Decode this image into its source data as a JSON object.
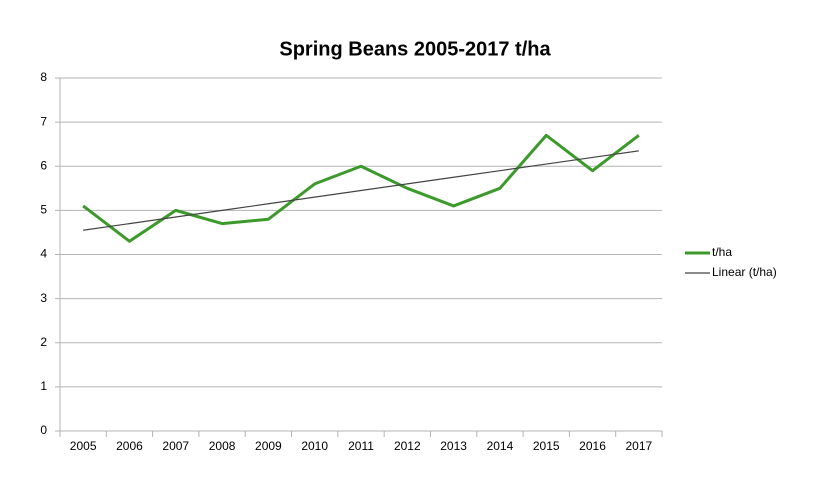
{
  "chart_data": {
    "type": "line",
    "title": "Spring Beans 2005-2017 t/ha",
    "categories": [
      "2005",
      "2006",
      "2007",
      "2008",
      "2009",
      "2010",
      "2011",
      "2012",
      "2013",
      "2014",
      "2015",
      "2016",
      "2017"
    ],
    "series": [
      {
        "name": "t/ha",
        "color": "#3b9a2a",
        "values": [
          5.1,
          4.3,
          5.0,
          4.7,
          4.8,
          5.6,
          6.0,
          5.5,
          5.1,
          5.5,
          6.7,
          5.9,
          6.7
        ]
      },
      {
        "name": "Linear (t/ha)",
        "color": "#444444",
        "values": [
          4.55,
          4.7,
          4.85,
          5.0,
          5.15,
          5.3,
          5.45,
          5.6,
          5.75,
          5.9,
          6.05,
          6.2,
          6.35
        ]
      }
    ],
    "ylim": [
      0,
      8
    ],
    "yticks": [
      0,
      1,
      2,
      3,
      4,
      5,
      6,
      7,
      8
    ],
    "grid": true,
    "legend": "right"
  }
}
